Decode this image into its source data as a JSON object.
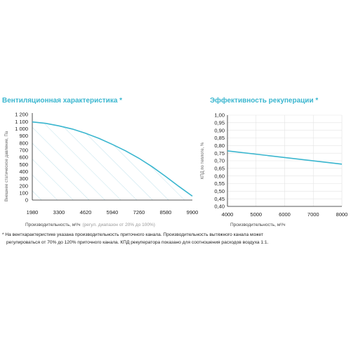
{
  "chart_data": [
    {
      "type": "area",
      "title": "Вентиляционная характеристика *",
      "xlabel": "Производительность, м³/ч",
      "xlabel_note": "(регул. диапазон от 20% до 100%)",
      "ylabel": "Внешнее статическое давление, Па",
      "x_ticks": [
        "1980",
        "3300",
        "4620",
        "5940",
        "7260",
        "8580",
        "9900"
      ],
      "y_ticks": [
        "0",
        "100",
        "200",
        "300",
        "400",
        "500",
        "600",
        "700",
        "800",
        "900",
        "1 000",
        "1 100",
        "1 200"
      ],
      "xlim": [
        1980,
        9900
      ],
      "ylim": [
        0,
        1200
      ],
      "grid": false,
      "fill": "hatched",
      "color": "#3ab6cf",
      "hatch_color": "#b9dfe9",
      "x": [
        1980,
        2640,
        3300,
        3960,
        4620,
        5280,
        5940,
        6600,
        7260,
        7920,
        8580,
        9240,
        9900
      ],
      "y": [
        1095,
        1075,
        1040,
        995,
        935,
        865,
        780,
        690,
        585,
        465,
        330,
        190,
        55
      ]
    },
    {
      "type": "line",
      "title": "Эффективность рекуперации *",
      "xlabel": "Производительность, м³/ч",
      "ylabel": "КПД по теплоте, %",
      "x_ticks": [
        "4000",
        "5000",
        "6000",
        "7000",
        "8000"
      ],
      "y_ticks": [
        "0,40",
        "0,45",
        "0,50",
        "0,55",
        "0,60",
        "0,65",
        "0,70",
        "0,75",
        "0,80",
        "0,85",
        "0,90",
        "0,95",
        "1,00"
      ],
      "xlim": [
        4000,
        8000
      ],
      "ylim": [
        0.4,
        1.0
      ],
      "grid": true,
      "color": "#3ab6cf",
      "x": [
        4000,
        8000
      ],
      "y": [
        0.765,
        0.678
      ]
    }
  ],
  "footnote": {
    "line1": "* На вентхарактеристике указана производительность приточного канала. Производительность вытяжного канала может",
    "line2": "регулироваться от 70% до 120% приточного канала. КПД рекуператора показано для соотношения расходов воздуха 1:1."
  }
}
